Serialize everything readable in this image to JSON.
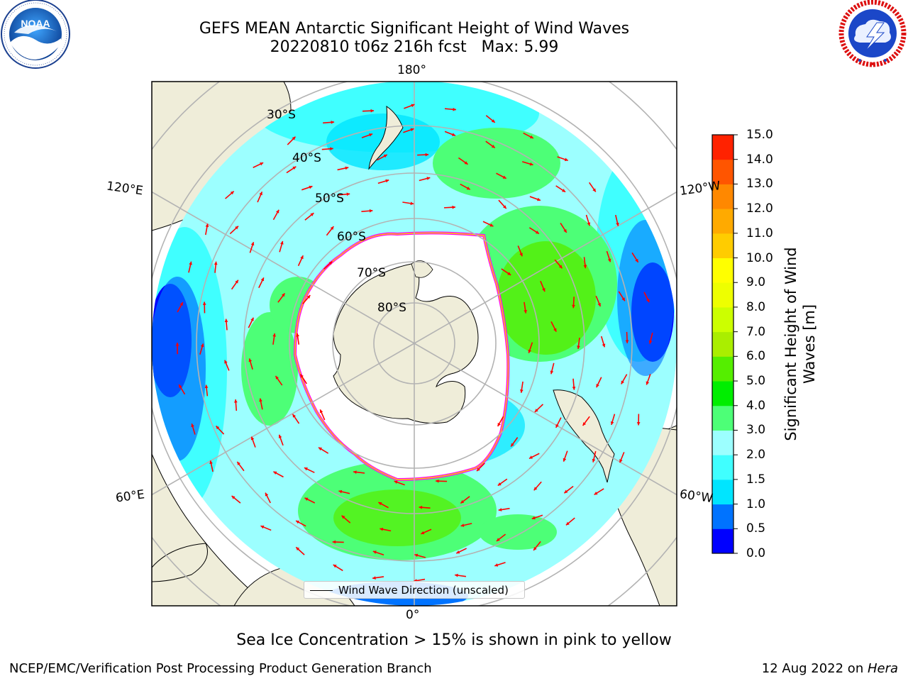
{
  "header": {
    "title_line1": "GEFS MEAN Antarctic Significant Height of Wind Waves",
    "title_line2": "20220810 t06z 216h fcst   Max: 5.99"
  },
  "logos": {
    "left": {
      "text": "NOAA",
      "ring_text": "NATIONAL OCEANIC AND ATMOSPHERIC ADMINISTRATION · U.S. DEPARTMENT OF COMMERCE"
    },
    "right": {
      "ring_text": "NATIONAL WEATHER SERVICE"
    }
  },
  "map": {
    "projection": "south-polar-stereographic",
    "meridian_labels": {
      "top": "180°",
      "left_upper": "120°E",
      "right_upper": "120°W",
      "left_lower": "60°E",
      "right_lower": "60°W",
      "bottom": "0°"
    },
    "latitude_labels": [
      "30°S",
      "40°S",
      "50°S",
      "60°S",
      "70°S",
      "80°S"
    ],
    "land_color": "#efedd9",
    "ice_edge_colors": [
      "#ff00ff",
      "#ffcc00"
    ]
  },
  "legend": {
    "label": "Wind Wave Direction (unscaled)",
    "arrow_color": "#ff0000"
  },
  "colorbar": {
    "label_line1": "Significant Height of Wind",
    "label_line2": "Waves [m]",
    "ticks": [
      "0.0",
      "0.5",
      "1.0",
      "1.5",
      "2.0",
      "3.0",
      "4.0",
      "5.0",
      "6.0",
      "7.0",
      "8.0",
      "9.0",
      "10.0",
      "11.0",
      "12.0",
      "13.0",
      "14.0",
      "15.0"
    ],
    "colors": [
      "#0000ff",
      "#0073ff",
      "#00e5ff",
      "#40ffff",
      "#9cffff",
      "#4dff77",
      "#00ee00",
      "#55ee00",
      "#aaee00",
      "#ccff00",
      "#eeff00",
      "#ffff00",
      "#ffcc00",
      "#ffaa00",
      "#ff8800",
      "#ff5500",
      "#ff2200"
    ]
  },
  "note": "Sea Ice Concentration > 15% is shown in pink to yellow",
  "footer": {
    "left": "NCEP/EMC/Verification Post Processing Product Generation Branch",
    "right_prefix": "12 Aug 2022 on ",
    "right_machine": "Hera"
  }
}
